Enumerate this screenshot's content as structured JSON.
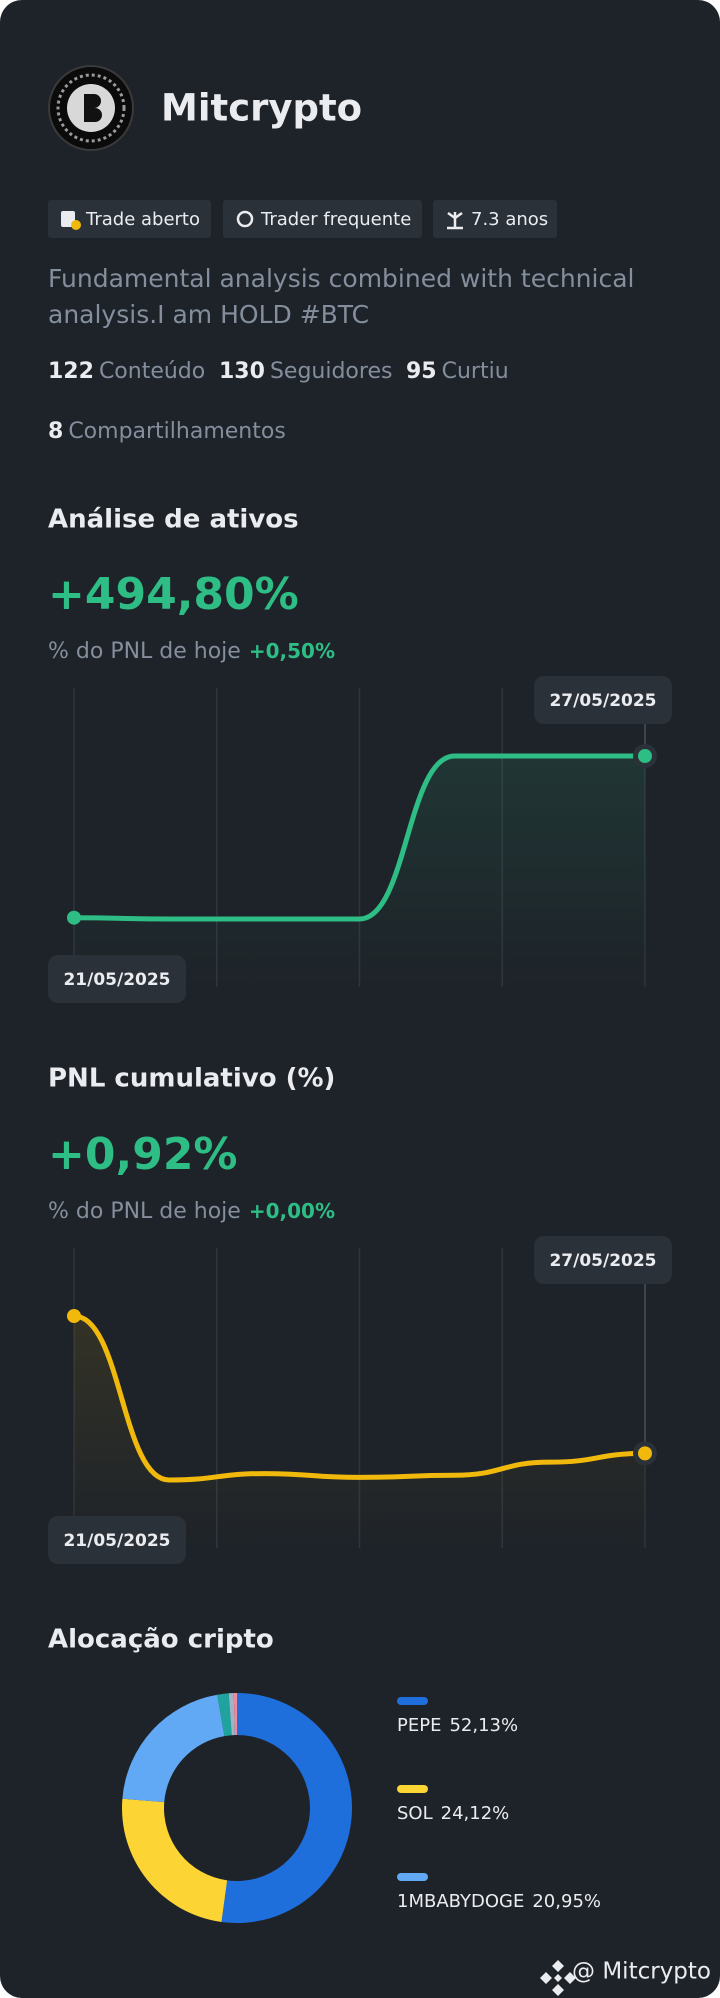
{
  "profile": {
    "name": "Mitcrypto",
    "tags": [
      "Trade aberto",
      "Trader frequente",
      "7.3 anos"
    ],
    "description": [
      "Fundamental analysis combined with technical",
      "analysis.I am HOLD #BTC"
    ],
    "stats": [
      {
        "value": 122,
        "label": "Conteúdo"
      },
      {
        "value": 130,
        "label": "Seguidores"
      },
      {
        "value": 95,
        "label": "Curtiu"
      },
      {
        "value": 8,
        "label": "Compartilhamentos"
      }
    ]
  },
  "chart_data": [
    {
      "type": "line",
      "title": "Análise de ativos",
      "headline": "+494,80%",
      "subtitle": "% do PNL de hoje",
      "today": "+0,50%",
      "categories": [
        "21/05/2025",
        null,
        null,
        null,
        null,
        null,
        "27/05/2025"
      ],
      "series": [
        {
          "color": "#2ebd85",
          "values": [
            0,
            -3.9,
            -3.9,
            -3.9,
            494.8,
            494.8,
            494.8
          ]
        }
      ]
    },
    {
      "type": "line",
      "title": "PNL cumulativo (%)",
      "headline": "+0,92%",
      "subtitle": "% do PNL de hoje",
      "today": "+0,00%",
      "categories": [
        "21/05/2025",
        null,
        null,
        null,
        null,
        null,
        "27/05/2025"
      ],
      "series": [
        {
          "color": "#f0b90b",
          "values": [
            6.7,
            -0.2,
            0.07,
            -0.09,
            0.0,
            0.55,
            0.92
          ]
        }
      ]
    },
    {
      "type": "pie",
      "title": "Alocação cripto",
      "categories": [
        "PEPE",
        "SOL",
        "1MBABYDOGE",
        null,
        null,
        null
      ],
      "values": [
        52.13,
        24.12,
        20.95,
        1.6,
        0.7,
        0.45
      ],
      "value_labels": [
        "52,13%",
        "24,12%",
        "20,95%",
        null,
        null,
        null
      ],
      "colors": [
        "#1e6fdc",
        "#fcd535",
        "#61a9f5",
        "#20a39e",
        "#a0b4c8",
        "#f08a9c"
      ]
    }
  ],
  "footer": "@ Mitcrypto"
}
